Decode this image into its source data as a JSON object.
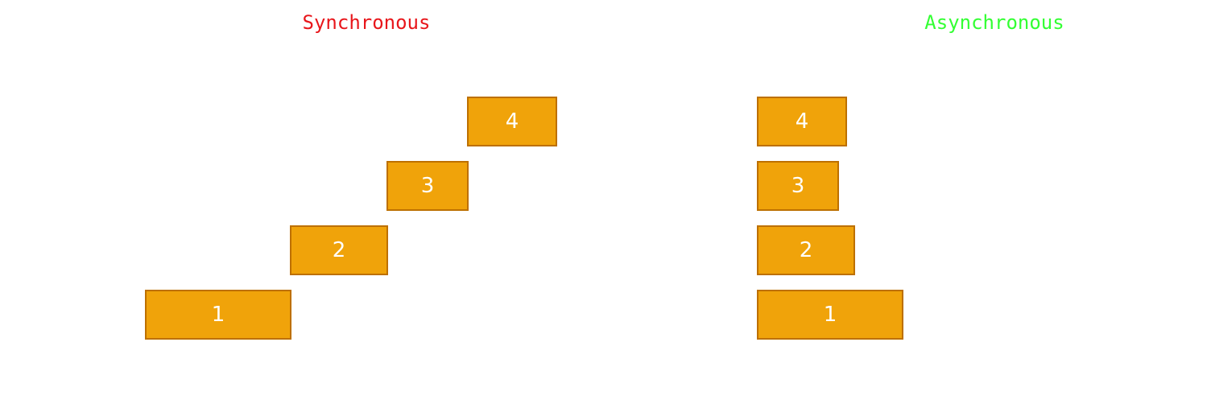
{
  "sync": {
    "title": "Synchronous",
    "title_color": "#e8161b",
    "tasks": [
      "4",
      "3",
      "2",
      "1"
    ]
  },
  "async": {
    "title": "Asynchronous",
    "title_color": "#33ff33",
    "tasks": [
      "4",
      "3",
      "2",
      "1"
    ]
  },
  "colors": {
    "task_fill": "#f0a30a",
    "task_stroke": "#bd7000",
    "task_text": "#ffffff"
  }
}
